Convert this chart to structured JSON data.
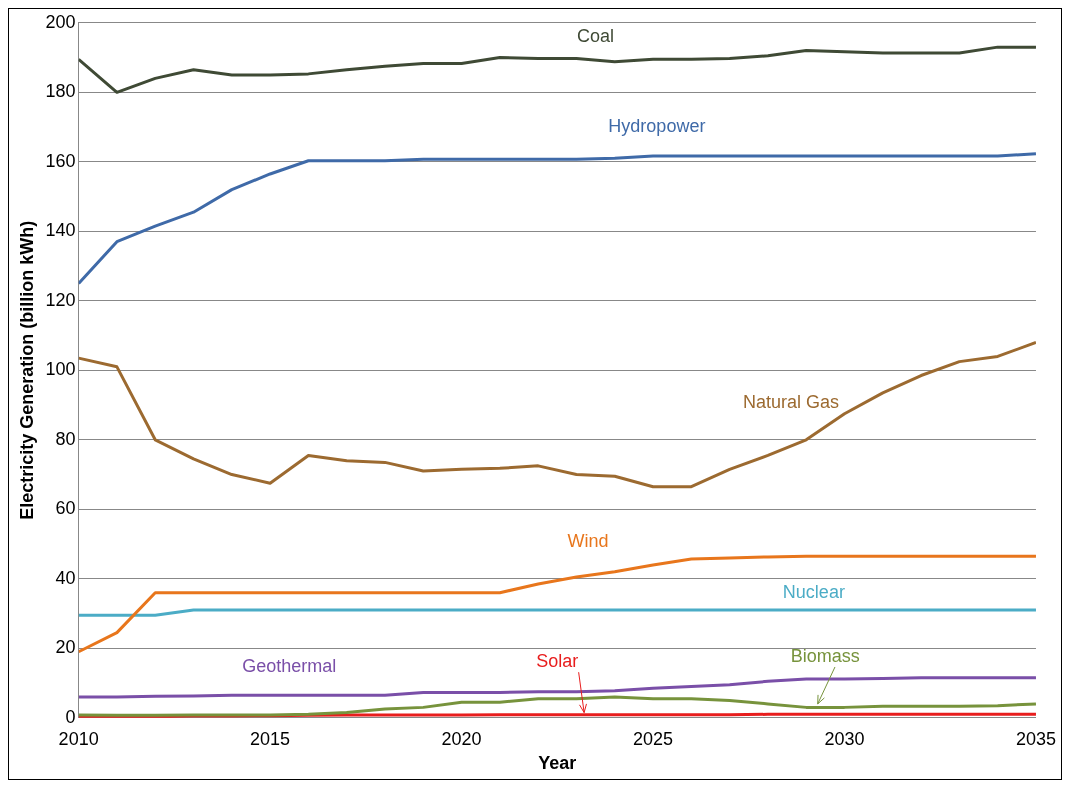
{
  "chart_data": {
    "type": "line",
    "xlabel": "Year",
    "ylabel": "Electricity Generation (billion kWh)",
    "x": [
      2010,
      2011,
      2012,
      2013,
      2014,
      2015,
      2016,
      2017,
      2018,
      2019,
      2020,
      2021,
      2022,
      2023,
      2024,
      2025,
      2026,
      2027,
      2028,
      2029,
      2030,
      2031,
      2032,
      2033,
      2034,
      2035
    ],
    "xlim": [
      2010,
      2035
    ],
    "xticks": [
      2010,
      2015,
      2020,
      2025,
      2030,
      2035
    ],
    "ylim": [
      0,
      200
    ],
    "yticks": [
      0,
      20,
      40,
      60,
      80,
      100,
      120,
      140,
      160,
      180,
      200
    ],
    "grid": "y",
    "legend": false,
    "marker": "none",
    "line_style": "solid",
    "series": [
      {
        "name": "Coal",
        "color": "#3f4a35",
        "values": [
          189.5,
          180,
          184,
          186.5,
          185,
          185,
          185.3,
          186.5,
          187.5,
          188.3,
          188.3,
          190,
          189.7,
          189.7,
          188.8,
          189.5,
          189.5,
          189.7,
          190.5,
          192,
          191.7,
          191.3,
          191.3,
          191.3,
          193,
          193
        ]
      },
      {
        "name": "Hydropower",
        "color": "#3f6aa8",
        "values": [
          125,
          137,
          141.5,
          145.5,
          152,
          156.5,
          160.3,
          160.3,
          160.3,
          160.7,
          160.7,
          160.7,
          160.7,
          160.7,
          161,
          161.7,
          161.7,
          161.7,
          161.7,
          161.7,
          161.7,
          161.7,
          161.7,
          161.7,
          161.7,
          162.3
        ]
      },
      {
        "name": "Natural Gas",
        "color": "#9c6a30",
        "values": [
          103.5,
          101,
          80,
          74.5,
          70,
          67.5,
          75.5,
          74,
          73.5,
          71,
          71.5,
          71.8,
          72.5,
          70,
          69.5,
          66.5,
          66.5,
          71.5,
          75.5,
          80,
          87.5,
          93.5,
          98.5,
          102.5,
          104,
          108
        ]
      },
      {
        "name": "Wind",
        "color": "#e8761c",
        "values": [
          19,
          24.5,
          36,
          36,
          36,
          36,
          36,
          36,
          36,
          36,
          36,
          36,
          38.5,
          40.5,
          42,
          44,
          45.7,
          46,
          46.3,
          46.5,
          46.5,
          46.5,
          46.5,
          46.5,
          46.5,
          46.5
        ]
      },
      {
        "name": "Nuclear",
        "color": "#4bacc6",
        "values": [
          29.5,
          29.5,
          29.5,
          31,
          31,
          31,
          31,
          31,
          31,
          31,
          31,
          31,
          31,
          31,
          31,
          31,
          31,
          31,
          31,
          31,
          31,
          31,
          31,
          31,
          31,
          31
        ]
      },
      {
        "name": "Geothermal",
        "color": "#7a4fa8",
        "values": [
          6,
          6,
          6.2,
          6.3,
          6.5,
          6.5,
          6.5,
          6.5,
          6.5,
          7.3,
          7.3,
          7.3,
          7.5,
          7.5,
          7.8,
          8.5,
          9,
          9.5,
          10.5,
          11.2,
          11.2,
          11.3,
          11.5,
          11.5,
          11.5,
          11.5
        ]
      },
      {
        "name": "Biomass",
        "color": "#77933c",
        "values": [
          0.8,
          0.7,
          0.7,
          0.8,
          0.8,
          0.8,
          1,
          1.5,
          2.5,
          3,
          4.5,
          4.5,
          5.5,
          5.5,
          6,
          5.5,
          5.5,
          5,
          4,
          3,
          3,
          3.3,
          3.3,
          3.3,
          3.5,
          4
        ]
      },
      {
        "name": "Solar",
        "color": "#e81d1d",
        "values": [
          0.3,
          0.3,
          0.3,
          0.5,
          0.5,
          0.6,
          0.7,
          0.8,
          0.8,
          0.8,
          0.8,
          0.9,
          0.9,
          0.9,
          0.9,
          0.9,
          0.9,
          0.9,
          1,
          1,
          1,
          1,
          1,
          1,
          1,
          1
        ]
      }
    ]
  }
}
